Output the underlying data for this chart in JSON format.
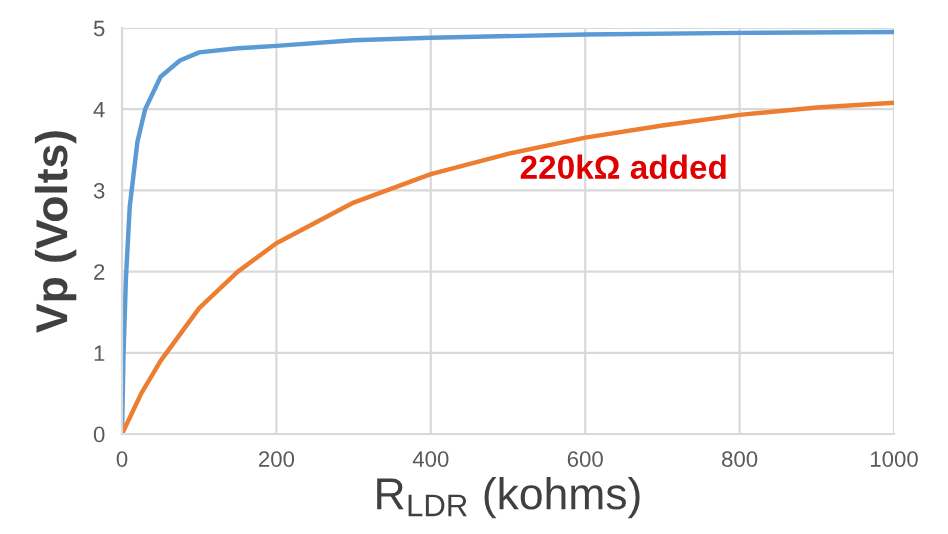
{
  "chart_data": {
    "type": "line",
    "xlabel": "R$_{LDR}$ (kohms)",
    "ylabel": "Vp (Volts)",
    "xlim": [
      0,
      1000
    ],
    "xticks": [
      0,
      200,
      400,
      600,
      800,
      1000
    ],
    "ylim": [
      0,
      5
    ],
    "yticks": [
      0,
      1,
      2,
      3,
      4,
      5
    ],
    "grid": true,
    "marker": "none",
    "line_style": "solid",
    "series": [
      {
        "color": "#5b9bd5",
        "x": [
          0,
          2,
          5,
          10,
          20,
          30,
          50,
          75,
          100,
          150,
          200,
          300,
          400,
          600,
          800,
          1000
        ],
        "values": [
          0,
          1.0,
          1.9,
          2.8,
          3.6,
          4.0,
          4.4,
          4.6,
          4.7,
          4.75,
          4.78,
          4.85,
          4.88,
          4.92,
          4.94,
          4.95
        ]
      },
      {
        "color": "#ed7d31",
        "x": [
          0,
          25,
          50,
          100,
          150,
          200,
          300,
          400,
          500,
          600,
          700,
          800,
          900,
          1000
        ],
        "values": [
          0,
          0.5,
          0.9,
          1.55,
          2.0,
          2.35,
          2.85,
          3.2,
          3.45,
          3.65,
          3.8,
          3.93,
          4.02,
          4.08
        ]
      }
    ],
    "annotations": [
      "220kΩ added"
    ]
  }
}
